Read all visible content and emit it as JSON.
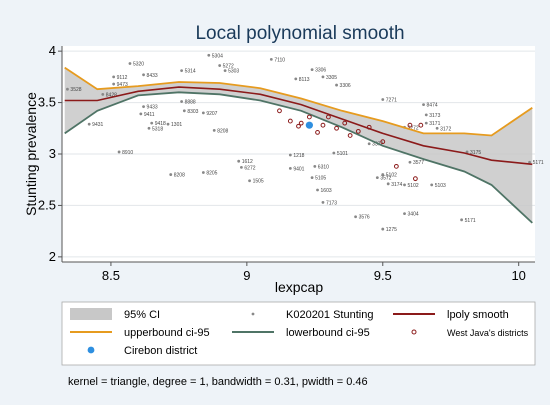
{
  "chart_data": {
    "type": "line",
    "title": "Local polynomial smooth",
    "xlabel": "lexpcap",
    "ylabel": "Stunting prevalence",
    "xlim": [
      8.32,
      10.06
    ],
    "ylim": [
      1.95,
      4.05
    ],
    "xticks": [
      8.5,
      9,
      9.5,
      10
    ],
    "xtick_labels": [
      "8.5",
      "9",
      "9.5",
      "10"
    ],
    "yticks": [
      2,
      2.5,
      3,
      3.5,
      4
    ],
    "ytick_labels": [
      "2",
      "2.5",
      "3",
      "3.5",
      "4"
    ],
    "grid": true,
    "legend_position": "bottom",
    "note": "kernel = triangle, degree = 1, bandwidth = 0.31, pwidth = 0.46",
    "series": [
      {
        "name": "95% CI",
        "kind": "band",
        "x": [
          8.33,
          8.45,
          8.6,
          8.75,
          8.9,
          9.05,
          9.2,
          9.35,
          9.5,
          9.65,
          9.8,
          9.9,
          10.05
        ],
        "lower": [
          3.2,
          3.42,
          3.57,
          3.6,
          3.58,
          3.52,
          3.42,
          3.26,
          3.08,
          2.95,
          2.83,
          2.7,
          2.33
        ],
        "upper": [
          3.84,
          3.63,
          3.66,
          3.7,
          3.69,
          3.64,
          3.54,
          3.42,
          3.32,
          3.2,
          3.2,
          3.18,
          3.45
        ]
      },
      {
        "name": "K020201 Stunting",
        "kind": "scatter",
        "points": [
          {
            "x": 8.34,
            "y": 3.63,
            "label": "3528"
          },
          {
            "x": 8.47,
            "y": 3.58,
            "label": "8428"
          },
          {
            "x": 8.42,
            "y": 3.29,
            "label": "9431"
          },
          {
            "x": 8.51,
            "y": 3.75,
            "label": "9112"
          },
          {
            "x": 8.51,
            "y": 3.68,
            "label": "9473"
          },
          {
            "x": 8.57,
            "y": 3.88,
            "label": "5320"
          },
          {
            "x": 8.62,
            "y": 3.77,
            "label": "8433"
          },
          {
            "x": 8.62,
            "y": 3.46,
            "label": "9433"
          },
          {
            "x": 8.61,
            "y": 3.39,
            "label": "9411"
          },
          {
            "x": 8.65,
            "y": 3.3,
            "label": "9418"
          },
          {
            "x": 8.64,
            "y": 3.25,
            "label": "5318"
          },
          {
            "x": 8.71,
            "y": 3.29,
            "label": "1301"
          },
          {
            "x": 8.53,
            "y": 3.02,
            "label": "8910"
          },
          {
            "x": 8.76,
            "y": 3.81,
            "label": "5314"
          },
          {
            "x": 8.76,
            "y": 3.51,
            "label": "8888"
          },
          {
            "x": 8.77,
            "y": 3.42,
            "label": "8303"
          },
          {
            "x": 8.84,
            "y": 3.4,
            "label": "9207"
          },
          {
            "x": 8.88,
            "y": 3.23,
            "label": "8208"
          },
          {
            "x": 8.86,
            "y": 3.96,
            "label": "5304"
          },
          {
            "x": 8.9,
            "y": 3.86,
            "label": "5272"
          },
          {
            "x": 8.92,
            "y": 3.81,
            "label": "5303"
          },
          {
            "x": 8.72,
            "y": 2.8,
            "label": "8208"
          },
          {
            "x": 8.84,
            "y": 2.82,
            "label": "8205"
          },
          {
            "x": 8.97,
            "y": 2.93,
            "label": "1612"
          },
          {
            "x": 8.98,
            "y": 2.87,
            "label": "6272"
          },
          {
            "x": 9.01,
            "y": 2.74,
            "label": "1505"
          },
          {
            "x": 9.09,
            "y": 3.92,
            "label": "7110"
          },
          {
            "x": 9.18,
            "y": 3.73,
            "label": "8113"
          },
          {
            "x": 9.24,
            "y": 3.82,
            "label": "3306"
          },
          {
            "x": 9.28,
            "y": 3.75,
            "label": "3305"
          },
          {
            "x": 9.33,
            "y": 3.67,
            "label": "3306"
          },
          {
            "x": 9.16,
            "y": 2.99,
            "label": "1218"
          },
          {
            "x": 9.16,
            "y": 2.86,
            "label": "9401"
          },
          {
            "x": 9.25,
            "y": 2.88,
            "label": "6310"
          },
          {
            "x": 9.24,
            "y": 2.77,
            "label": "5105"
          },
          {
            "x": 9.32,
            "y": 3.01,
            "label": "5101"
          },
          {
            "x": 9.26,
            "y": 2.65,
            "label": "1603"
          },
          {
            "x": 9.28,
            "y": 2.53,
            "label": "7173"
          },
          {
            "x": 9.5,
            "y": 3.53,
            "label": "7271"
          },
          {
            "x": 9.65,
            "y": 3.48,
            "label": "8474"
          },
          {
            "x": 9.66,
            "y": 3.38,
            "label": "3173"
          },
          {
            "x": 9.66,
            "y": 3.3,
            "label": "3171"
          },
          {
            "x": 9.58,
            "y": 3.26,
            "label": "3272"
          },
          {
            "x": 9.7,
            "y": 3.25,
            "label": "3172"
          },
          {
            "x": 9.45,
            "y": 3.1,
            "label": "3372"
          },
          {
            "x": 9.6,
            "y": 2.92,
            "label": "3577"
          },
          {
            "x": 9.48,
            "y": 2.77,
            "label": "3572"
          },
          {
            "x": 9.52,
            "y": 2.71,
            "label": "3174"
          },
          {
            "x": 9.58,
            "y": 2.7,
            "label": "5102"
          },
          {
            "x": 9.68,
            "y": 2.7,
            "label": "5103"
          },
          {
            "x": 9.5,
            "y": 2.8,
            "label": "5102"
          },
          {
            "x": 9.81,
            "y": 3.02,
            "label": "3175"
          },
          {
            "x": 10.04,
            "y": 2.92,
            "label": "5171"
          },
          {
            "x": 9.4,
            "y": 2.39,
            "label": "3576"
          },
          {
            "x": 9.58,
            "y": 2.42,
            "label": "3404"
          },
          {
            "x": 9.5,
            "y": 2.27,
            "label": "1275"
          },
          {
            "x": 9.79,
            "y": 2.36,
            "label": "5171"
          }
        ]
      },
      {
        "name": "lpoly smooth",
        "kind": "line",
        "color": "#8b1a1a",
        "x": [
          8.33,
          8.45,
          8.6,
          8.75,
          8.9,
          9.05,
          9.2,
          9.35,
          9.5,
          9.65,
          9.8,
          9.9,
          10.05
        ],
        "y": [
          3.52,
          3.52,
          3.61,
          3.65,
          3.63,
          3.58,
          3.48,
          3.34,
          3.2,
          3.08,
          3.01,
          2.94,
          2.9
        ]
      },
      {
        "name": "upperbound ci-95",
        "kind": "line",
        "color": "#e69b1f",
        "x": [
          8.33,
          8.45,
          8.6,
          8.75,
          8.9,
          9.05,
          9.2,
          9.35,
          9.5,
          9.65,
          9.8,
          9.9,
          10.05
        ],
        "y": [
          3.84,
          3.63,
          3.66,
          3.7,
          3.69,
          3.64,
          3.54,
          3.42,
          3.32,
          3.2,
          3.2,
          3.18,
          3.45
        ]
      },
      {
        "name": "lowerbound ci-95",
        "kind": "line",
        "color": "#4f7466",
        "x": [
          8.33,
          8.45,
          8.6,
          8.75,
          8.9,
          9.05,
          9.2,
          9.35,
          9.5,
          9.65,
          9.8,
          9.9,
          10.05
        ],
        "y": [
          3.2,
          3.42,
          3.57,
          3.6,
          3.58,
          3.52,
          3.42,
          3.26,
          3.08,
          2.95,
          2.83,
          2.7,
          2.33
        ]
      },
      {
        "name": "West Java's districts",
        "kind": "scatter",
        "color": "#8b1a1a",
        "points": [
          {
            "x": 9.12,
            "y": 3.42
          },
          {
            "x": 9.16,
            "y": 3.32
          },
          {
            "x": 9.19,
            "y": 3.27
          },
          {
            "x": 9.2,
            "y": 3.3
          },
          {
            "x": 9.23,
            "y": 3.36
          },
          {
            "x": 9.26,
            "y": 3.21
          },
          {
            "x": 9.28,
            "y": 3.28
          },
          {
            "x": 9.3,
            "y": 3.36
          },
          {
            "x": 9.33,
            "y": 3.25
          },
          {
            "x": 9.36,
            "y": 3.3
          },
          {
            "x": 9.38,
            "y": 3.18
          },
          {
            "x": 9.41,
            "y": 3.22
          },
          {
            "x": 9.45,
            "y": 3.26
          },
          {
            "x": 9.5,
            "y": 3.12
          },
          {
            "x": 9.55,
            "y": 2.88
          },
          {
            "x": 9.6,
            "y": 3.28
          },
          {
            "x": 9.62,
            "y": 2.76
          },
          {
            "x": 9.64,
            "y": 3.28
          }
        ]
      },
      {
        "name": "Cirebon district",
        "kind": "scatter",
        "color": "#2e8fe0",
        "points": [
          {
            "x": 9.23,
            "y": 3.28
          }
        ]
      }
    ]
  },
  "legend": [
    {
      "label": "95% CI",
      "symbol": "band",
      "color": "#c8c8c8"
    },
    {
      "label": "K020201 Stunting",
      "symbol": "dot",
      "color": "#888888"
    },
    {
      "label": "lpoly smooth",
      "symbol": "line",
      "color": "#8b1a1a"
    },
    {
      "label": "upperbound ci-95",
      "symbol": "line",
      "color": "#e69b1f"
    },
    {
      "label": "lowerbound ci-95",
      "symbol": "line",
      "color": "#4f7466"
    },
    {
      "label": "West Java's districts",
      "symbol": "diamond",
      "color": "#8b1a1a"
    },
    {
      "label": "Cirebon district",
      "symbol": "bigdot",
      "color": "#2e8fe0"
    }
  ],
  "colors": {
    "background": "#eef3f8",
    "plot_bg": "#ffffff",
    "grid": "#e2e6ea",
    "axis": "#555555",
    "title": "#1a3a5a"
  }
}
